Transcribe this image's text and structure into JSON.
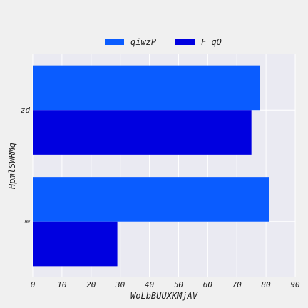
{
  "chart_data": {
    "type": "bar",
    "orientation": "horizontal",
    "title": "",
    "xlabel": "WoLbBUUXKMjAV",
    "ylabel": "HpmlSWRMq",
    "categories": [
      "zd",
      "HW"
    ],
    "series": [
      {
        "name": "qiwzP",
        "values": [
          78,
          81
        ],
        "color": "#0a5cff"
      },
      {
        "name": "F qO",
        "values": [
          75,
          29
        ],
        "color": "#0000e0"
      }
    ],
    "xlim": [
      0,
      90
    ],
    "xticks": [
      0,
      10,
      20,
      30,
      40,
      50,
      60,
      70,
      80,
      90
    ],
    "grid": true,
    "legend_position": "top-center",
    "plot_background": "#eaeaf2"
  }
}
